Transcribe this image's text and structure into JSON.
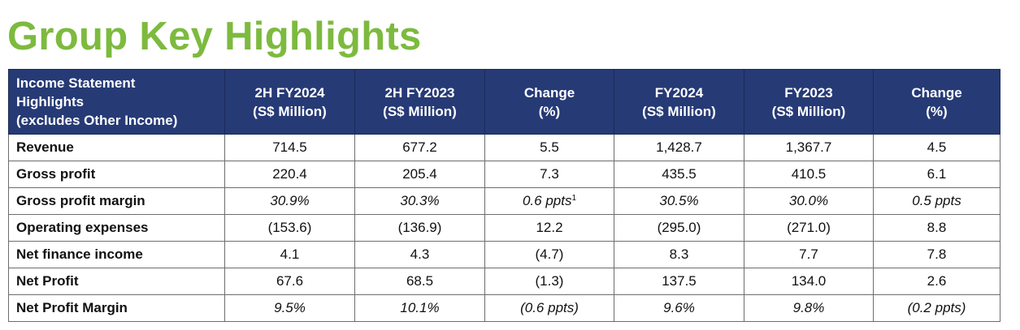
{
  "title": "Group Key Highlights",
  "table": {
    "header": {
      "label_lines": [
        "Income Statement",
        "Highlights",
        "(excludes Other Income)"
      ],
      "columns": [
        {
          "line1": "2H FY2024",
          "line2": "(S$ Million)"
        },
        {
          "line1": "2H FY2023",
          "line2": "(S$ Million)"
        },
        {
          "line1": "Change",
          "line2": "(%)"
        },
        {
          "line1": "FY2024",
          "line2": "(S$ Million)"
        },
        {
          "line1": "FY2023",
          "line2": "(S$ Million)"
        },
        {
          "line1": "Change",
          "line2": "(%)"
        }
      ]
    },
    "rows": [
      {
        "label": "Revenue",
        "cells": [
          "714.5",
          "677.2",
          "5.5",
          "1,428.7",
          "1,367.7",
          "4.5"
        ]
      },
      {
        "label": "Gross profit",
        "cells": [
          "220.4",
          "205.4",
          "7.3",
          "435.5",
          "410.5",
          "6.1"
        ]
      },
      {
        "label": "Gross profit margin",
        "cells": [
          "30.9%",
          "30.3%",
          "0.6 ppts",
          "30.5%",
          "30.0%",
          "0.5 ppts"
        ],
        "footnote": "1"
      },
      {
        "label": "Operating expenses",
        "cells": [
          "(153.6)",
          "(136.9)",
          "12.2",
          "(295.0)",
          "(271.0)",
          "8.8"
        ]
      },
      {
        "label": "Net finance income",
        "cells": [
          "4.1",
          "4.3",
          "(4.7)",
          "8.3",
          "7.7",
          "7.8"
        ]
      },
      {
        "label": "Net Profit",
        "cells": [
          "67.6",
          "68.5",
          "(1.3)",
          "137.5",
          "134.0",
          "2.6"
        ]
      },
      {
        "label": "Net Profit Margin",
        "cells": [
          "9.5%",
          "10.1%",
          "(0.6 ppts)",
          "9.6%",
          "9.8%",
          "(0.2 ppts)"
        ]
      }
    ]
  },
  "colors": {
    "title": "#7dba3f",
    "header_background": "#263a75",
    "header_text": "#ffffff",
    "grid": "#6d6d6d"
  }
}
